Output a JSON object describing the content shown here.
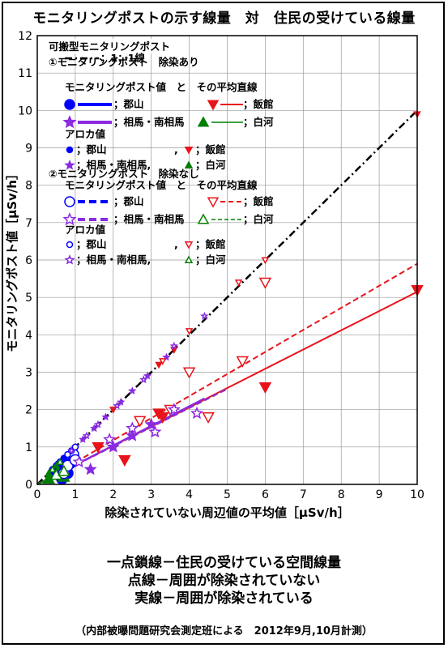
{
  "header": {
    "title": "モニタリングポストの示す線量　対　住民の受けている線量"
  },
  "notes": [
    "一点鎖線－住民の受けている空間線量",
    "点線－周囲が除染されていない",
    "実線－周囲が除染されている"
  ],
  "credit": "（内部被曝問題研究会測定班による　2012年9月,10月計測）",
  "legend": {
    "title": "可搬型モニタリングポスト",
    "ref_line": "；1：1線",
    "group1_title": "①モニタリングポスト　除染あり",
    "group2_title": "②モニタリングポスト　除染なし",
    "mp_header": "モニタリングポスト値　と　その平均直線",
    "aroka_header": "アロカ値",
    "labels": {
      "koriyama": "；郡山",
      "iitate": "；飯館",
      "soma": "；相馬・南相馬",
      "shirakawa": "；白河",
      "koriyama_aroka": "；郡山",
      "soma_aroka": "；相馬・南相馬,",
      "comma": ","
    }
  },
  "colors": {
    "koriyama": "#0000ff",
    "iitate": "#e8141b",
    "soma": "#8a2be2",
    "shirakawa": "#008000",
    "ref": "#000000"
  },
  "chart_data": {
    "type": "scatter",
    "xlabel": "除染されていない周辺値の平均値［μSv/h］",
    "ylabel": "モニタリングポスト値［μSv/h］",
    "xlim": [
      0,
      10
    ],
    "ylim": [
      0,
      12
    ],
    "xticks": [
      0,
      1,
      2,
      3,
      4,
      5,
      6,
      7,
      8,
      9,
      10
    ],
    "yticks": [
      0,
      1,
      2,
      3,
      4,
      5,
      6,
      7,
      8,
      9,
      10,
      11,
      12
    ],
    "grid": true,
    "lines": [
      {
        "name": "1：1線",
        "style": "dashdot",
        "color": "ref",
        "x": [
          0,
          10
        ],
        "y": [
          0,
          10
        ]
      },
      {
        "name": "郡山 除染あり",
        "style": "solid",
        "color": "koriyama",
        "x": [
          0,
          1
        ],
        "y": [
          0,
          0.5
        ]
      },
      {
        "name": "飯館 除染あり",
        "style": "solid",
        "color": "iitate",
        "x": [
          0,
          10
        ],
        "y": [
          0,
          5.15
        ]
      },
      {
        "name": "相馬・南相馬 除染あり",
        "style": "solid",
        "color": "soma",
        "x": [
          0,
          4.4
        ],
        "y": [
          0,
          2.3
        ]
      },
      {
        "name": "白河 除染あり",
        "style": "solid",
        "color": "shirakawa",
        "x": [
          0,
          0.8
        ],
        "y": [
          0,
          0.4
        ]
      },
      {
        "name": "郡山 除染なし",
        "style": "dashed",
        "color": "koriyama",
        "x": [
          0,
          0.9
        ],
        "y": [
          0,
          0.5
        ]
      },
      {
        "name": "飯館 除染なし",
        "style": "dashed",
        "color": "iitate",
        "x": [
          0,
          10
        ],
        "y": [
          0,
          5.9
        ]
      },
      {
        "name": "相馬・南相馬 除染なし",
        "style": "dashed",
        "color": "soma",
        "x": [
          0,
          5
        ],
        "y": [
          0,
          2.55
        ]
      },
      {
        "name": "白河 除染なし",
        "style": "dashed",
        "color": "shirakawa",
        "x": [
          0,
          0.8
        ],
        "y": [
          0,
          0.45
        ]
      }
    ],
    "series": [
      {
        "name": "郡山 MP 除染あり",
        "color": "koriyama",
        "marker": "circle",
        "filled": true,
        "big": true,
        "x": [
          0.5,
          0.6,
          0.7,
          0.8,
          0.85,
          0.65
        ],
        "y": [
          0.3,
          0.25,
          0.45,
          0.3,
          0.55,
          0.15
        ]
      },
      {
        "name": "飯館 MP 除染あり",
        "color": "iitate",
        "marker": "tri_down",
        "filled": true,
        "big": true,
        "x": [
          1.6,
          2.3,
          3.2,
          3.3,
          6.0,
          10.0
        ],
        "y": [
          1.0,
          0.65,
          1.9,
          1.8,
          2.6,
          5.2
        ]
      },
      {
        "name": "相馬・南相馬 MP 除染あり",
        "color": "soma",
        "marker": "star",
        "filled": true,
        "big": true,
        "x": [
          1.4,
          2.0,
          2.5,
          3.0
        ],
        "y": [
          0.4,
          1.0,
          1.3,
          1.6
        ]
      },
      {
        "name": "白河 MP 除染あり",
        "color": "shirakawa",
        "marker": "tri_up",
        "filled": true,
        "big": true,
        "x": [
          0.3,
          0.55,
          0.7
        ],
        "y": [
          0.15,
          0.3,
          0.2
        ]
      },
      {
        "name": "郡山 アロカ 除染あり",
        "color": "koriyama",
        "marker": "circle",
        "filled": true,
        "big": false,
        "x": [
          0.4,
          0.5,
          0.6,
          0.7,
          0.55
        ],
        "y": [
          0.4,
          0.5,
          0.6,
          0.7,
          0.55
        ]
      },
      {
        "name": "飯館 アロカ 除染あり",
        "color": "iitate",
        "marker": "tri_down",
        "filled": true,
        "big": false,
        "x": [
          2.0,
          3.2,
          3.6,
          6.0,
          10.0
        ],
        "y": [
          2.0,
          3.2,
          3.6,
          6.0,
          9.9
        ]
      },
      {
        "name": "相馬・南相馬 アロカ 除染あり",
        "color": "soma",
        "marker": "star",
        "filled": true,
        "big": false,
        "x": [
          1.0,
          1.2,
          1.5,
          1.8,
          2.2,
          2.5,
          2.9,
          3.4
        ],
        "y": [
          1.0,
          1.2,
          1.5,
          1.8,
          2.2,
          2.5,
          2.9,
          3.4
        ]
      },
      {
        "name": "白河 アロカ 除染あり",
        "color": "shirakawa",
        "marker": "tri_up",
        "filled": true,
        "big": false,
        "x": [
          0.3,
          0.5
        ],
        "y": [
          0.3,
          0.5
        ]
      },
      {
        "name": "郡山 MP 除染なし",
        "color": "koriyama",
        "marker": "circle",
        "filled": false,
        "big": true,
        "x": [
          0.7,
          0.8,
          0.95,
          1.0
        ],
        "y": [
          0.3,
          0.5,
          0.8,
          0.65
        ]
      },
      {
        "name": "飯館 MP 除染なし",
        "color": "iitate",
        "marker": "tri_down",
        "filled": false,
        "big": true,
        "x": [
          2.7,
          3.5,
          4.0,
          4.5,
          5.4,
          6.0
        ],
        "y": [
          1.7,
          2.0,
          3.0,
          1.8,
          3.3,
          5.4
        ]
      },
      {
        "name": "相馬・南相馬 MP 除染なし",
        "color": "soma",
        "marker": "star",
        "filled": false,
        "big": true,
        "x": [
          1.1,
          1.9,
          2.5,
          3.1,
          3.6,
          4.2
        ],
        "y": [
          0.6,
          1.2,
          1.5,
          1.4,
          2.0,
          1.9
        ]
      },
      {
        "name": "白河 MP 除染なし",
        "color": "shirakawa",
        "marker": "tri_up",
        "filled": false,
        "big": true,
        "x": [
          0.5,
          0.7
        ],
        "y": [
          0.25,
          0.35
        ]
      },
      {
        "name": "郡山 アロカ 除染なし",
        "color": "koriyama",
        "marker": "circle",
        "filled": false,
        "big": false,
        "x": [
          0.6,
          0.8,
          0.9,
          1.0
        ],
        "y": [
          0.6,
          0.8,
          0.9,
          1.0
        ]
      },
      {
        "name": "飯館 アロカ 除染なし",
        "color": "iitate",
        "marker": "tri_down",
        "filled": false,
        "big": false,
        "x": [
          3.3,
          4.0,
          5.3,
          6.0
        ],
        "y": [
          3.3,
          4.1,
          5.4,
          6.0
        ]
      },
      {
        "name": "相馬・南相馬 アロカ 除染なし",
        "color": "soma",
        "marker": "star",
        "filled": false,
        "big": false,
        "x": [
          0.9,
          1.3,
          1.6,
          2.1,
          2.8,
          3.6,
          4.4
        ],
        "y": [
          0.9,
          1.3,
          1.6,
          2.1,
          2.8,
          3.7,
          4.5
        ]
      },
      {
        "name": "白河 アロカ 除染なし",
        "color": "shirakawa",
        "marker": "tri_up",
        "filled": false,
        "big": false,
        "x": [
          0.4,
          0.6
        ],
        "y": [
          0.4,
          0.6
        ]
      }
    ]
  }
}
